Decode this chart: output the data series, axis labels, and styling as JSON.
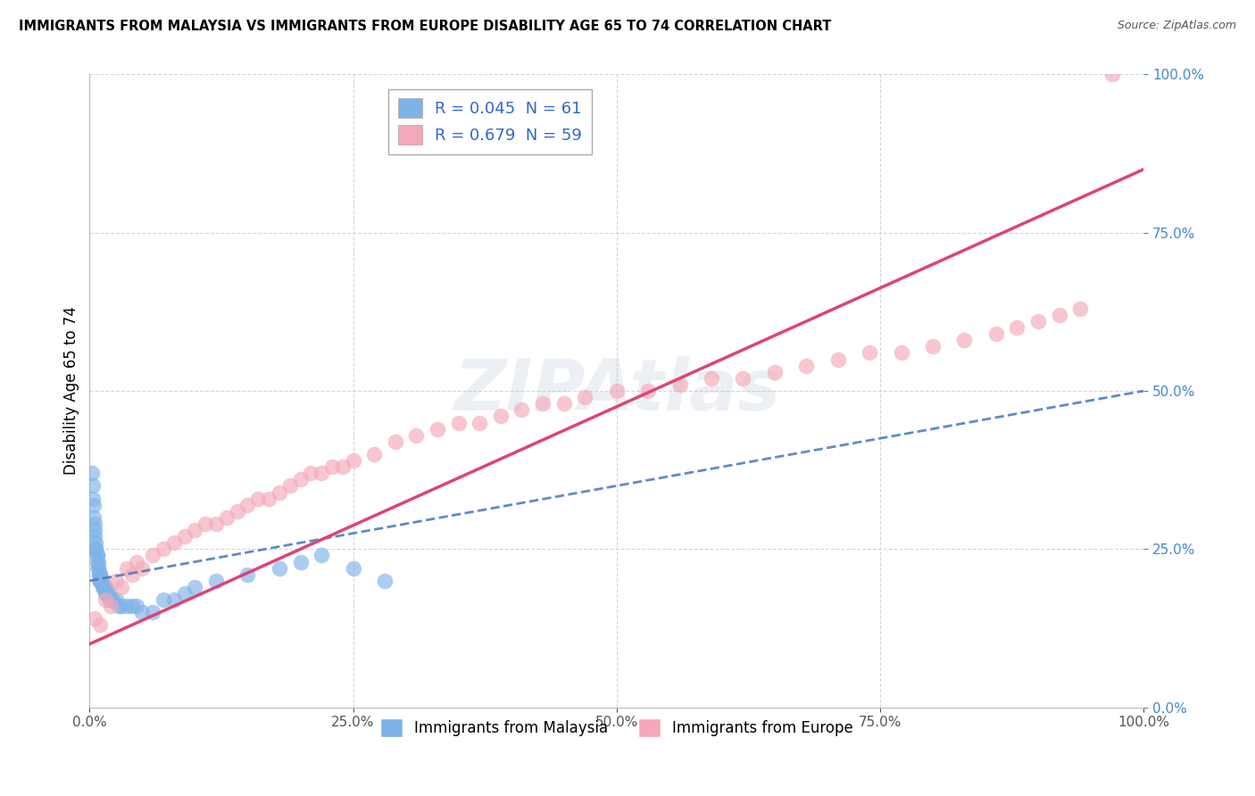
{
  "title": "IMMIGRANTS FROM MALAYSIA VS IMMIGRANTS FROM EUROPE DISABILITY AGE 65 TO 74 CORRELATION CHART",
  "source": "Source: ZipAtlas.com",
  "ylabel": "Disability Age 65 to 74",
  "watermark": "ZIPAtlas",
  "legend_blue_label": "Immigrants from Malaysia",
  "legend_pink_label": "Immigrants from Europe",
  "blue_R": 0.045,
  "blue_N": 61,
  "pink_R": 0.679,
  "pink_N": 59,
  "blue_color": "#7eb3e8",
  "pink_color": "#f4a8b8",
  "blue_trend_color": "#4477bb",
  "pink_trend_color": "#dd4477",
  "background_color": "#ffffff",
  "grid_color": "#cccccc",
  "blue_x": [
    0.2,
    0.3,
    0.3,
    0.4,
    0.4,
    0.5,
    0.5,
    0.5,
    0.6,
    0.6,
    0.6,
    0.7,
    0.7,
    0.7,
    0.8,
    0.8,
    0.8,
    0.9,
    0.9,
    1.0,
    1.0,
    1.0,
    1.0,
    1.0,
    1.1,
    1.1,
    1.2,
    1.2,
    1.3,
    1.3,
    1.4,
    1.5,
    1.5,
    1.5,
    1.6,
    1.6,
    1.7,
    1.8,
    1.9,
    2.0,
    2.0,
    2.2,
    2.5,
    2.8,
    3.0,
    3.5,
    4.0,
    4.5,
    5.0,
    6.0,
    7.0,
    8.0,
    9.0,
    10.0,
    12.0,
    15.0,
    18.0,
    20.0,
    22.0,
    25.0,
    28.0
  ],
  "blue_y": [
    37,
    35,
    33,
    32,
    30,
    29,
    28,
    27,
    26,
    25,
    25,
    24,
    24,
    23,
    23,
    22,
    22,
    21,
    21,
    21,
    21,
    20,
    20,
    20,
    20,
    20,
    20,
    19,
    19,
    19,
    19,
    19,
    19,
    18,
    18,
    18,
    18,
    18,
    17,
    17,
    17,
    17,
    17,
    16,
    16,
    16,
    16,
    16,
    15,
    15,
    17,
    17,
    18,
    19,
    20,
    21,
    22,
    23,
    24,
    22,
    20
  ],
  "pink_x": [
    0.5,
    1.0,
    1.5,
    2.0,
    2.5,
    3.0,
    3.5,
    4.0,
    4.5,
    5.0,
    6.0,
    7.0,
    8.0,
    9.0,
    10.0,
    11.0,
    12.0,
    13.0,
    14.0,
    15.0,
    16.0,
    17.0,
    18.0,
    19.0,
    20.0,
    21.0,
    22.0,
    23.0,
    24.0,
    25.0,
    27.0,
    29.0,
    31.0,
    33.0,
    35.0,
    37.0,
    39.0,
    41.0,
    43.0,
    45.0,
    47.0,
    50.0,
    53.0,
    56.0,
    59.0,
    62.0,
    65.0,
    68.0,
    71.0,
    74.0,
    77.0,
    80.0,
    83.0,
    86.0,
    88.0,
    90.0,
    92.0,
    94.0,
    97.0
  ],
  "pink_y": [
    14,
    13,
    17,
    16,
    20,
    19,
    22,
    21,
    23,
    22,
    24,
    25,
    26,
    27,
    28,
    29,
    29,
    30,
    31,
    32,
    33,
    33,
    34,
    35,
    36,
    37,
    37,
    38,
    38,
    39,
    40,
    42,
    43,
    44,
    45,
    45,
    46,
    47,
    48,
    48,
    49,
    50,
    50,
    51,
    52,
    52,
    53,
    54,
    55,
    56,
    56,
    57,
    58,
    59,
    60,
    61,
    62,
    63,
    100
  ],
  "xlim": [
    0,
    100
  ],
  "ylim": [
    0,
    100
  ],
  "xticks": [
    0,
    25,
    50,
    75,
    100
  ],
  "yticks": [
    0,
    25,
    50,
    75,
    100
  ],
  "blue_trend_start_x": 0,
  "blue_trend_end_x": 100,
  "blue_trend_start_y": 20,
  "blue_trend_end_y": 50,
  "pink_trend_start_x": 0,
  "pink_trend_end_x": 100,
  "pink_trend_start_y": 10,
  "pink_trend_end_y": 85
}
